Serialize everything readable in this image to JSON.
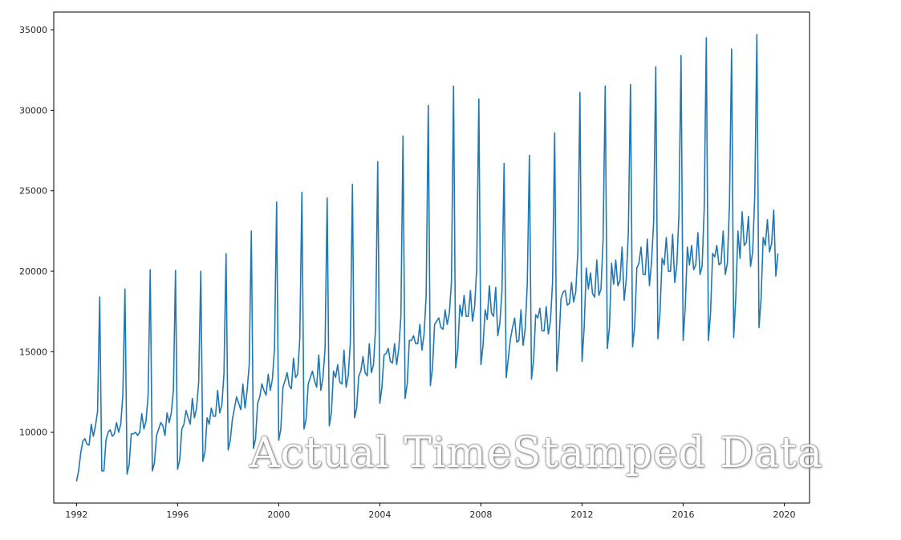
{
  "chart_data": {
    "type": "line",
    "title": "",
    "xlabel": "",
    "ylabel": "",
    "xlim": [
      1991.1,
      2021.0
    ],
    "ylim": [
      5600,
      36100
    ],
    "x_ticks": [
      1992,
      1996,
      2000,
      2004,
      2008,
      2012,
      2016,
      2020
    ],
    "y_ticks": [
      10000,
      15000,
      20000,
      25000,
      30000,
      35000
    ],
    "grid": false,
    "legend": "none",
    "line_color": "#1f77b4",
    "x_start": 1992.0,
    "x_step": 0.08333333,
    "series": [
      {
        "values": [
          6950,
          7600,
          8700,
          9450,
          9600,
          9250,
          9200,
          10500,
          9750,
          10400,
          11300,
          18400,
          7600,
          7600,
          9500,
          10000,
          10150,
          9750,
          9900,
          10600,
          10000,
          10500,
          12300,
          18900,
          7400,
          8000,
          9900,
          9900,
          10000,
          9800,
          10000,
          11150,
          10200,
          10700,
          12300,
          20100,
          7600,
          8100,
          9800,
          10200,
          10600,
          10400,
          9800,
          11200,
          10600,
          11200,
          12600,
          20050,
          7700,
          8300,
          10200,
          10500,
          11350,
          10900,
          10500,
          12100,
          10900,
          11500,
          13100,
          20000,
          8200,
          8800,
          10900,
          10500,
          11500,
          11000,
          11000,
          12600,
          11200,
          11700,
          13600,
          21100,
          8900,
          9500,
          10800,
          11500,
          12200,
          11800,
          11400,
          13000,
          11500,
          12600,
          14200,
          22500,
          9000,
          9600,
          11800,
          12200,
          13000,
          12600,
          12300,
          13600,
          12600,
          13300,
          15200,
          24300,
          9500,
          10200,
          12800,
          13200,
          13700,
          12900,
          12700,
          14600,
          13400,
          13600,
          15800,
          24900,
          10200,
          10800,
          13000,
          13400,
          13800,
          13200,
          12800,
          14800,
          12600,
          13400,
          15200,
          24550,
          10400,
          11200,
          13800,
          13400,
          14200,
          13100,
          13000,
          15100,
          12800,
          13500,
          15600,
          25400,
          10900,
          11500,
          13500,
          13800,
          14700,
          13700,
          13500,
          15500,
          13700,
          14200,
          16500,
          26800,
          11800,
          12800,
          14800,
          14900,
          15200,
          14400,
          14300,
          15500,
          14200,
          15200,
          17200,
          28400,
          12100,
          13000,
          15700,
          15700,
          16000,
          15500,
          15500,
          16700,
          15100,
          16100,
          18500,
          30300,
          12900,
          14000,
          16700,
          16900,
          17100,
          16500,
          16400,
          17600,
          16700,
          17400,
          19300,
          31500,
          14000,
          15100,
          17900,
          17200,
          18500,
          17200,
          17200,
          18800,
          16900,
          17800,
          20200,
          30700,
          14200,
          15400,
          17600,
          17000,
          19100,
          17400,
          17200,
          19000,
          16000,
          16800,
          18800,
          26700,
          13400,
          14600,
          15800,
          16500,
          17100,
          15600,
          15700,
          17600,
          15400,
          16400,
          19200,
          27200,
          13300,
          14500,
          17300,
          17100,
          17700,
          16300,
          16300,
          17800,
          16100,
          16900,
          19300,
          28600,
          13800,
          15500,
          18300,
          18700,
          18800,
          17900,
          18000,
          19300,
          18100,
          18700,
          21200,
          31100,
          14400,
          16500,
          20200,
          18900,
          19900,
          18600,
          18400,
          20700,
          18500,
          18900,
          22000,
          31500,
          15200,
          16500,
          20500,
          19200,
          20700,
          19100,
          19400,
          21500,
          18200,
          19500,
          22500,
          31600,
          15300,
          16600,
          20200,
          20500,
          21500,
          19800,
          19800,
          22000,
          19100,
          20600,
          23100,
          32700,
          15800,
          17400,
          20800,
          20400,
          22100,
          20000,
          20000,
          22300,
          19300,
          20400,
          23500,
          33400,
          15700,
          17800,
          21500,
          20400,
          21600,
          20100,
          20400,
          22400,
          19800,
          20300,
          23900,
          34500,
          15700,
          17400,
          21100,
          20900,
          21600,
          20400,
          20500,
          22500,
          19800,
          20500,
          24200,
          33800,
          15900,
          18400,
          22500,
          20800,
          23700,
          21600,
          21800,
          23400,
          20300,
          21200,
          24700,
          34700,
          16500,
          18300,
          22100,
          21600,
          23200,
          21200,
          21700,
          23800,
          19700,
          21100
        ]
      }
    ]
  },
  "overlay": {
    "caption": "Actual TimeStamped Data"
  }
}
